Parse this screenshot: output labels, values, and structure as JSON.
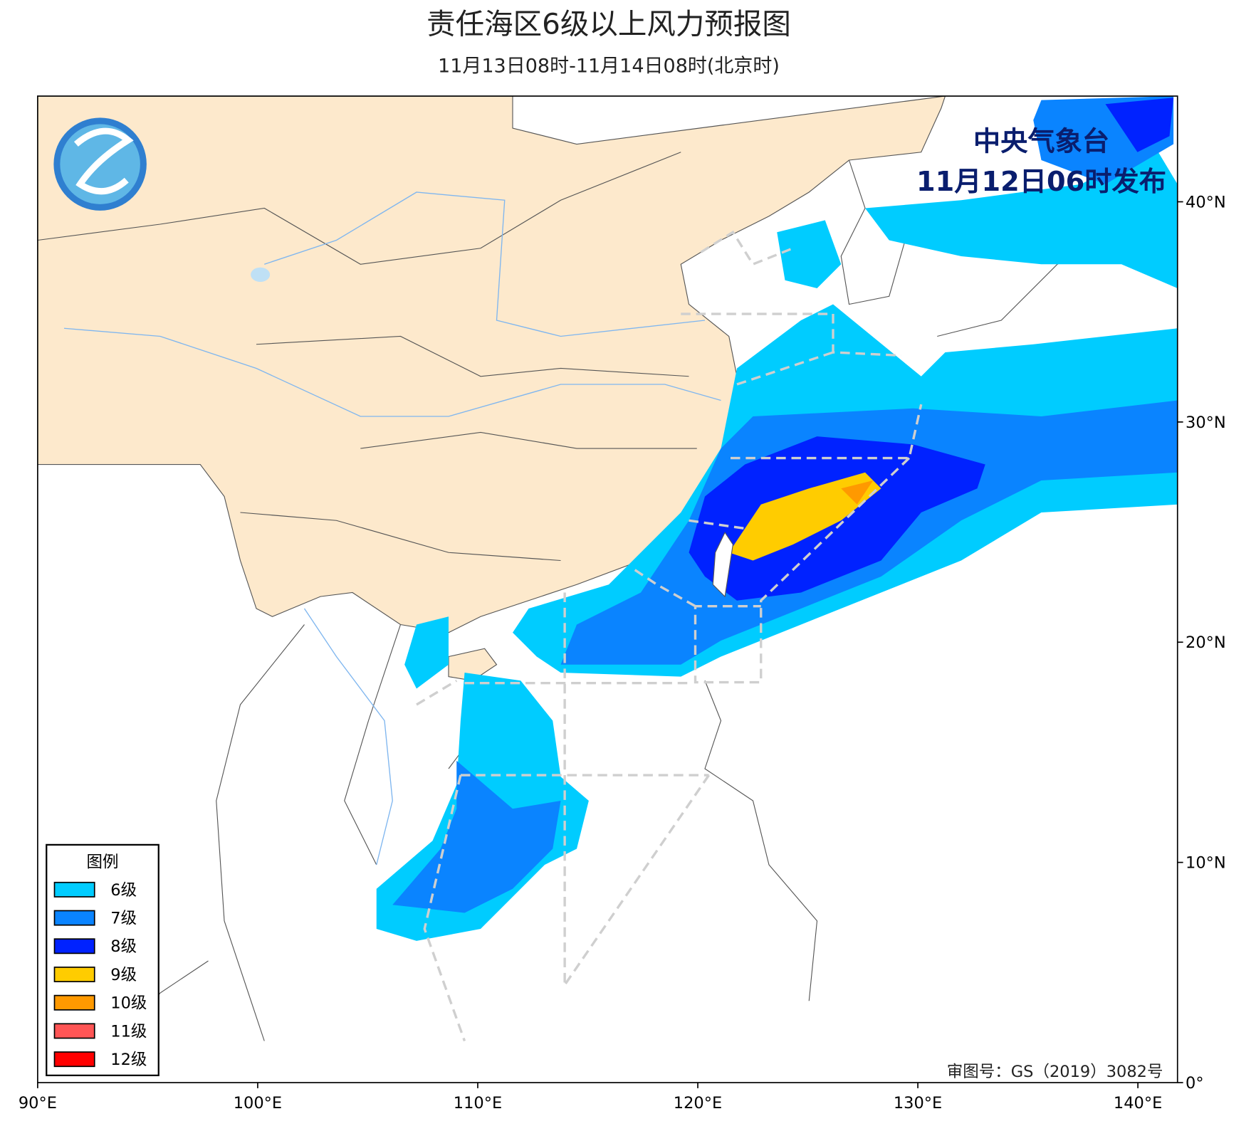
{
  "header": {
    "title": "责任海区6级以上风力预报图",
    "subtitle": "11月13日08时-11月14日08时(北京时)"
  },
  "issuer": {
    "name": "中央气象台",
    "issued": "11月12日06时发布"
  },
  "legend": {
    "title": "图例",
    "items": [
      {
        "label": "6级",
        "color": "#00ccff"
      },
      {
        "label": "7级",
        "color": "#0a84ff"
      },
      {
        "label": "8级",
        "color": "#0022ff"
      },
      {
        "label": "9级",
        "color": "#ffcc00"
      },
      {
        "label": "10级",
        "color": "#ff9900"
      },
      {
        "label": "11级",
        "color": "#ff5555"
      },
      {
        "label": "12级",
        "color": "#ff0000"
      }
    ]
  },
  "axes": {
    "xlim": [
      90,
      141.8
    ],
    "ylim": [
      0,
      44.8
    ],
    "xticks": [
      {
        "value": 90,
        "label": "90°E"
      },
      {
        "value": 100,
        "label": "100°E"
      },
      {
        "value": 110,
        "label": "110°E"
      },
      {
        "value": 120,
        "label": "120°E"
      },
      {
        "value": 130,
        "label": "130°E"
      },
      {
        "value": 140,
        "label": "140°E"
      }
    ],
    "yticks": [
      {
        "value": 0,
        "label": "0°"
      },
      {
        "value": 10,
        "label": "10°N"
      },
      {
        "value": 20,
        "label": "20°N"
      },
      {
        "value": 30,
        "label": "30°N"
      },
      {
        "value": 40,
        "label": "40°N"
      }
    ]
  },
  "footer": {
    "approval": "审图号：GS（2019）3082号"
  }
}
